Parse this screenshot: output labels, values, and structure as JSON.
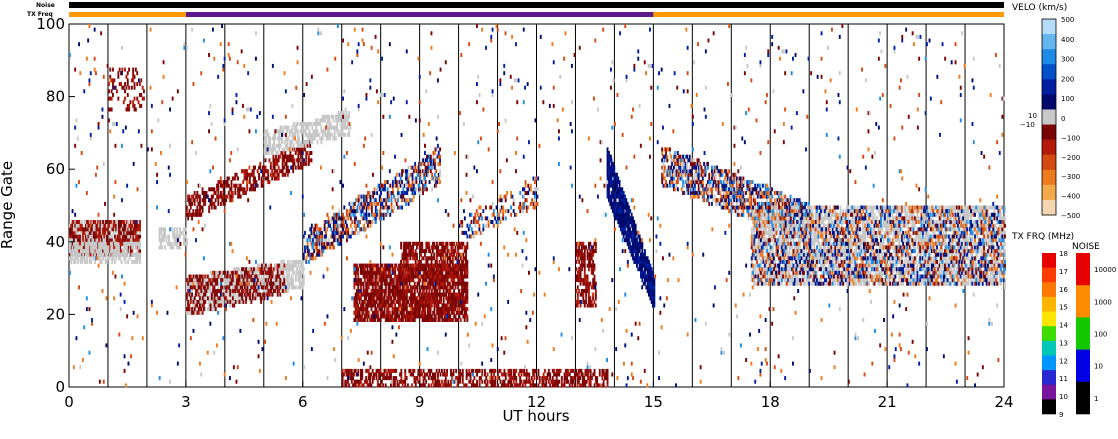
{
  "header": {
    "noise_label": "Noise",
    "txfreq_label": "TX Freq"
  },
  "colorbars": {
    "velocity": {
      "title": "VELO (km/s)",
      "ticks_top": [
        "500",
        "400",
        "300",
        "200",
        "100",
        "0"
      ],
      "near_zero_top": "10",
      "near_zero_bottom": "−10",
      "ticks_bottom": [
        "−100",
        "−200",
        "−300",
        "−400",
        "−500"
      ],
      "colors": [
        "#f4d6b0",
        "#f2a94a",
        "#ee7a1e",
        "#d44a12",
        "#b41a0a",
        "#7a0404",
        "#c8c8c8",
        "#000a6e",
        "#001ea0",
        "#0050c8",
        "#1e8ce6",
        "#64b4f0",
        "#b4dcf8"
      ]
    },
    "tx_freq": {
      "title": "TX FRQ (MHz)",
      "ticks": [
        "18",
        "17",
        "16",
        "15",
        "14",
        "13",
        "12",
        "11",
        "10",
        "9"
      ],
      "colors": [
        "#e60000",
        "#ff3c00",
        "#ff7800",
        "#ffb400",
        "#ffe600",
        "#3cdc00",
        "#00c8b4",
        "#0096ff",
        "#2828d2",
        "#78149b",
        "#000000"
      ]
    },
    "noise": {
      "title": "NOISE",
      "ticks": [
        "10000",
        "1000",
        "100",
        "10",
        "1"
      ],
      "colors": [
        "#e60000",
        "#ff8c00",
        "#14c800",
        "#0000e6",
        "#000000"
      ]
    }
  },
  "chart_data": {
    "type": "heatmap",
    "xlabel": "UT hours",
    "ylabel": "Range Gate",
    "xlim": [
      0,
      24
    ],
    "ylim": [
      0,
      100
    ],
    "x_ticks": [
      0,
      3,
      6,
      9,
      12,
      15,
      18,
      21,
      24
    ],
    "y_ticks": [
      0,
      20,
      40,
      60,
      80,
      100
    ],
    "hour_gridlines": [
      1,
      2,
      3,
      4,
      5,
      6,
      7,
      8,
      9,
      10,
      11,
      12,
      13,
      14,
      15,
      16,
      17,
      18,
      19,
      20,
      21,
      22,
      23
    ],
    "tx_freq_bar": [
      {
        "start": 0,
        "end": 3,
        "color": "#ff9900"
      },
      {
        "start": 3,
        "end": 15,
        "color": "#5a1a8c"
      },
      {
        "start": 15,
        "end": 24,
        "color": "#ff9900"
      }
    ],
    "series": [
      {
        "hours": [
          0,
          1.8
        ],
        "gates": [
          36,
          46
        ],
        "velocity": "low",
        "density": 0.85
      },
      {
        "hours": [
          0,
          1.8
        ],
        "gates": [
          34,
          40
        ],
        "velocity": "ground",
        "density": 0.6
      },
      {
        "hours": [
          2.3,
          3.0
        ],
        "gates": [
          38,
          44
        ],
        "velocity": "ground",
        "density": 0.5
      },
      {
        "hours": [
          1.0,
          1.9
        ],
        "gates": [
          76,
          88
        ],
        "velocity": "negative",
        "density": 0.25
      },
      {
        "hours": [
          3.0,
          6.2
        ],
        "gates_start": [
          46,
          52
        ],
        "gates_end": [
          62,
          68
        ],
        "velocity": "negative",
        "density": 0.55
      },
      {
        "hours": [
          5.0,
          7.2
        ],
        "gates_start": [
          64,
          70
        ],
        "gates_end": [
          70,
          76
        ],
        "velocity": "ground",
        "density": 0.6
      },
      {
        "hours": [
          3.0,
          6.0
        ],
        "gates_start": [
          20,
          30
        ],
        "gates_end": [
          28,
          35
        ],
        "velocity": "ground",
        "density": 0.7
      },
      {
        "hours": [
          3.0,
          5.5
        ],
        "gates_start": [
          20,
          30
        ],
        "gates_end": [
          26,
          34
        ],
        "velocity": "negative",
        "density": 0.4
      },
      {
        "hours": [
          6.0,
          9.5
        ],
        "gates_start": [
          34,
          42
        ],
        "gates_end": [
          56,
          66
        ],
        "velocity": "mixed",
        "density": 0.55
      },
      {
        "hours": [
          7.3,
          10.2
        ],
        "gates": [
          18,
          34
        ],
        "velocity": "negative",
        "density": 0.8
      },
      {
        "hours": [
          8.5,
          10.2
        ],
        "gates": [
          30,
          40
        ],
        "velocity": "negative",
        "density": 0.65
      },
      {
        "hours": [
          10,
          12
        ],
        "gates_start": [
          40,
          46
        ],
        "gates_end": [
          50,
          58
        ],
        "velocity": "mixed",
        "density": 0.3
      },
      {
        "hours": [
          13.0,
          13.5
        ],
        "gates": [
          22,
          40
        ],
        "velocity": "negative",
        "density": 0.6
      },
      {
        "hours": [
          13.8,
          15.0
        ],
        "gates_start": [
          52,
          66
        ],
        "gates_end": [
          22,
          30
        ],
        "velocity": "positive",
        "density": 0.9
      },
      {
        "hours": [
          15.2,
          19.0
        ],
        "gates_start": [
          56,
          66
        ],
        "gates_end": [
          40,
          50
        ],
        "velocity": "mixed",
        "density": 0.6
      },
      {
        "hours": [
          17.5,
          24.0
        ],
        "gates": [
          28,
          50
        ],
        "velocity": "ground",
        "density": 0.6
      },
      {
        "hours": [
          17.5,
          24.0
        ],
        "gates": [
          28,
          50
        ],
        "velocity": "mixed",
        "density": 0.35
      },
      {
        "hours": [
          7.0,
          13.8
        ],
        "gates": [
          0,
          5
        ],
        "velocity": "negative",
        "density": 0.55
      },
      {
        "hours": [
          0,
          24
        ],
        "gates": [
          0,
          100
        ],
        "velocity": "mixed",
        "density": 0.015
      }
    ]
  }
}
